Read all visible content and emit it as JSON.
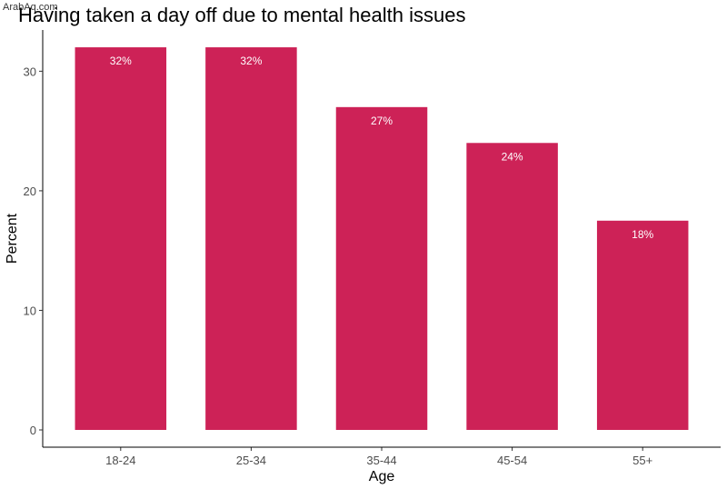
{
  "watermark": "ArabAq.com",
  "colors": {
    "bar": "#cd2257",
    "axis": "#000000",
    "tick_label": "#4d4d4d",
    "data_label": "#ffffff"
  },
  "chart_data": {
    "type": "bar",
    "title": "Having taken a day off due to mental health issues",
    "xlabel": "Age",
    "ylabel": "Percent",
    "categories": [
      "18-24",
      "25-34",
      "35-44",
      "45-54",
      "55+"
    ],
    "values": [
      32,
      32,
      27,
      24,
      17.5
    ],
    "data_labels": [
      "32%",
      "32%",
      "27%",
      "24%",
      "18%"
    ],
    "yticks": [
      0,
      10,
      20,
      30
    ],
    "ylim": [
      0,
      33.6
    ],
    "grid": false,
    "legend": "none"
  }
}
